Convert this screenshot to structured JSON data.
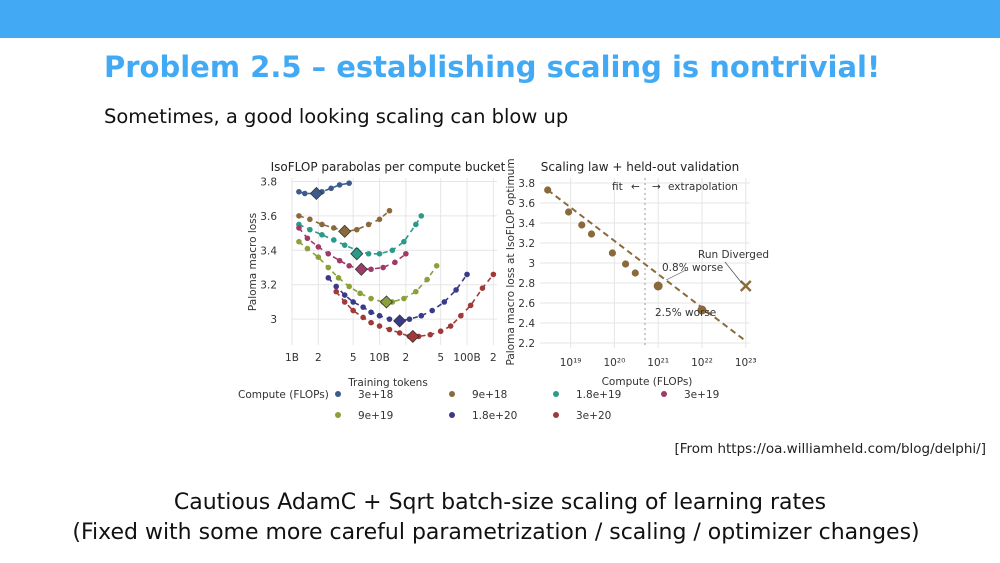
{
  "slide": {
    "title": "Problem 2.5 – establishing scaling is nontrivial!",
    "subtitle": "Sometimes, a good looking scaling can blow up",
    "citation": "[From https://oa.williamheld.com/blog/delphi/]",
    "bottom_line_1": "Cautious AdamC + Sqrt batch-size scaling of learning rates",
    "bottom_line_2": "(Fixed with some more careful parametrization / scaling / optimizer changes)",
    "header_color": "#42aaf5"
  },
  "chart_data": [
    {
      "type": "scatter",
      "title": "IsoFLOP parabolas per compute bucket",
      "xlabel": "Training tokens",
      "ylabel": "Paloma macro loss",
      "x_scale": "log",
      "x_ticks": [
        "1B",
        "2",
        "5",
        "10B",
        "2",
        "5",
        "100B",
        "2"
      ],
      "y_ticks": [
        "3",
        "3.2",
        "3.4",
        "3.6",
        "3.8"
      ],
      "ylim": [
        2.85,
        3.82
      ],
      "legend_title": "Compute (FLOPs)",
      "legend_placement": "bottom",
      "series": [
        {
          "name": "3e+18",
          "color": "#3d5a8a",
          "points": [
            [
              1200000000.0,
              3.74
            ],
            [
              1400000000.0,
              3.73
            ],
            [
              1800000000.0,
              3.73
            ],
            [
              2200000000.0,
              3.74
            ],
            [
              2800000000.0,
              3.76
            ],
            [
              3500000000.0,
              3.78
            ],
            [
              4500000000.0,
              3.79
            ]
          ],
          "optimum": [
            1900000000.0,
            3.73
          ]
        },
        {
          "name": "9e+18",
          "color": "#8a6a3a",
          "points": [
            [
              1200000000.0,
              3.6
            ],
            [
              1600000000.0,
              3.58
            ],
            [
              2200000000.0,
              3.55
            ],
            [
              3000000000.0,
              3.53
            ],
            [
              4200000000.0,
              3.51
            ],
            [
              5500000000.0,
              3.52
            ],
            [
              7500000000.0,
              3.55
            ],
            [
              10000000000.0,
              3.58
            ],
            [
              13000000000.0,
              3.63
            ]
          ],
          "optimum": [
            4000000000.0,
            3.51
          ]
        },
        {
          "name": "1.8e+19",
          "color": "#2a9a8a",
          "points": [
            [
              1200000000.0,
              3.55
            ],
            [
              1600000000.0,
              3.52
            ],
            [
              2200000000.0,
              3.49
            ],
            [
              3000000000.0,
              3.46
            ],
            [
              4000000000.0,
              3.43
            ],
            [
              5500000000.0,
              3.4
            ],
            [
              7500000000.0,
              3.38
            ],
            [
              10000000000.0,
              3.38
            ],
            [
              14000000000.0,
              3.4
            ],
            [
              19000000000.0,
              3.45
            ],
            [
              26000000000.0,
              3.55
            ],
            [
              30000000000.0,
              3.6
            ]
          ],
          "optimum": [
            5500000000.0,
            3.38
          ]
        },
        {
          "name": "3e+19",
          "color": "#a03a6a",
          "points": [
            [
              1200000000.0,
              3.53
            ],
            [
              1500000000.0,
              3.47
            ],
            [
              2000000000.0,
              3.42
            ],
            [
              2600000000.0,
              3.38
            ],
            [
              3500000000.0,
              3.34
            ],
            [
              4500000000.0,
              3.31
            ],
            [
              6000000000.0,
              3.29
            ],
            [
              8000000000.0,
              3.29
            ],
            [
              11000000000.0,
              3.3
            ],
            [
              15000000000.0,
              3.33
            ],
            [
              20000000000.0,
              3.38
            ]
          ],
          "optimum": [
            6200000000.0,
            3.29
          ]
        },
        {
          "name": "9e+19",
          "color": "#8aa03a",
          "points": [
            [
              1200000000.0,
              3.45
            ],
            [
              1500000000.0,
              3.41
            ],
            [
              2000000000.0,
              3.36
            ],
            [
              2600000000.0,
              3.3
            ],
            [
              3400000000.0,
              3.24
            ],
            [
              4500000000.0,
              3.19
            ],
            [
              6000000000.0,
              3.15
            ],
            [
              8000000000.0,
              3.12
            ],
            [
              11000000000.0,
              3.1
            ],
            [
              14000000000.0,
              3.1
            ],
            [
              19000000000.0,
              3.12
            ],
            [
              26000000000.0,
              3.16
            ],
            [
              35000000000.0,
              3.23
            ],
            [
              45000000000.0,
              3.31
            ]
          ],
          "optimum": [
            12000000000.0,
            3.1
          ]
        },
        {
          "name": "1.8e+20",
          "color": "#3a3a8a",
          "points": [
            [
              2600000000.0,
              3.24
            ],
            [
              3200000000.0,
              3.19
            ],
            [
              4000000000.0,
              3.14
            ],
            [
              5000000000.0,
              3.1
            ],
            [
              6500000000.0,
              3.07
            ],
            [
              8000000000.0,
              3.04
            ],
            [
              10000000000.0,
              3.02
            ],
            [
              13000000000.0,
              3.0
            ],
            [
              17000000000.0,
              2.99
            ],
            [
              22000000000.0,
              3.0
            ],
            [
              30000000000.0,
              3.02
            ],
            [
              40000000000.0,
              3.05
            ],
            [
              55000000000.0,
              3.1
            ],
            [
              75000000000.0,
              3.17
            ],
            [
              100000000000.0,
              3.26
            ]
          ],
          "optimum": [
            17000000000.0,
            2.99
          ]
        },
        {
          "name": "3e+20",
          "color": "#a03a3a",
          "points": [
            [
              3200000000.0,
              3.16
            ],
            [
              4000000000.0,
              3.1
            ],
            [
              5000000000.0,
              3.05
            ],
            [
              6500000000.0,
              3.01
            ],
            [
              8000000000.0,
              2.98
            ],
            [
              10000000000.0,
              2.96
            ],
            [
              13000000000.0,
              2.94
            ],
            [
              17000000000.0,
              2.92
            ],
            [
              22000000000.0,
              2.9
            ],
            [
              28000000000.0,
              2.9
            ],
            [
              38000000000.0,
              2.91
            ],
            [
              50000000000.0,
              2.93
            ],
            [
              65000000000.0,
              2.96
            ],
            [
              85000000000.0,
              3.02
            ],
            [
              110000000000.0,
              3.08
            ],
            [
              150000000000.0,
              3.18
            ],
            [
              200000000000.0,
              3.26
            ]
          ],
          "optimum": [
            24000000000.0,
            2.9
          ]
        }
      ]
    },
    {
      "type": "scatter",
      "title": "Scaling law + held-out validation",
      "xlabel": "Compute (FLOPs)",
      "ylabel": "Paloma macro loss at IsoFLOP optimum",
      "x_scale": "log",
      "x_ticks": [
        "10¹⁹",
        "10²⁰",
        "10²¹",
        "10²²",
        "10²³"
      ],
      "y_ticks": [
        "2.2",
        "2.4",
        "2.6",
        "2.8",
        "3",
        "3.2",
        "3.4",
        "3.6",
        "3.8"
      ],
      "ylim": [
        2.15,
        3.85
      ],
      "fit_color": "#8a6a3a",
      "points": [
        [
          3e+18,
          3.73
        ],
        [
          9e+18,
          3.51
        ],
        [
          1.8e+19,
          3.38
        ],
        [
          3e+19,
          3.29
        ],
        [
          9e+19,
          3.1
        ],
        [
          1.8e+20,
          2.99
        ],
        [
          3e+20,
          2.9
        ]
      ],
      "heldout_points": [
        [
          1e+21,
          2.77
        ],
        [
          1e+22,
          2.53
        ]
      ],
      "diverged_point": [
        1e+23,
        2.77
      ],
      "fit_line": [
        [
          3e+18,
          3.73
        ],
        [
          1e+23,
          2.22
        ]
      ],
      "split_x": 5e+20,
      "annotations": {
        "fit": "fit",
        "left_arrow": "←",
        "right_arrow": "→",
        "extrapolation": "extrapolation",
        "diverged": "Run Diverged",
        "worse_1": "0.8% worse",
        "worse_2": "2.5% worse"
      }
    }
  ]
}
